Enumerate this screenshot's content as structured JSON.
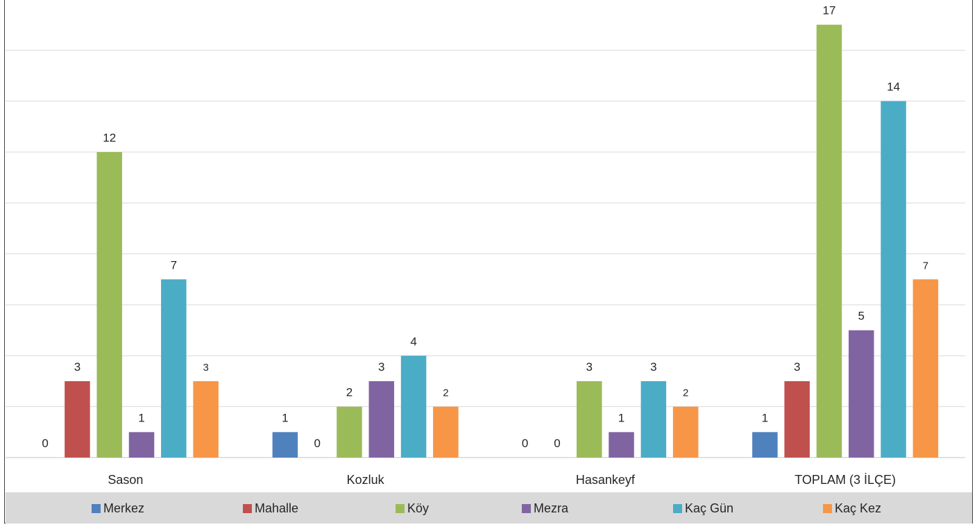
{
  "chart_data": {
    "type": "bar",
    "categories": [
      "Sason",
      "Kozluk",
      "Hasankeyf",
      "TOPLAM (3 İLÇE)"
    ],
    "series": [
      {
        "name": "Merkez",
        "color": "#4f81bd",
        "values": [
          0,
          1,
          0,
          1
        ]
      },
      {
        "name": "Mahalle",
        "color": "#c0504d",
        "values": [
          3,
          0,
          0,
          3
        ]
      },
      {
        "name": "Köy",
        "color": "#9bbb59",
        "values": [
          12,
          2,
          3,
          17
        ]
      },
      {
        "name": "Mezra",
        "color": "#8064a2",
        "values": [
          1,
          3,
          1,
          5
        ]
      },
      {
        "name": "Kaç Gün",
        "color": "#4bacc6",
        "values": [
          7,
          4,
          3,
          14
        ]
      },
      {
        "name": "Kaç Kez",
        "color": "#f79646",
        "values": [
          3,
          2,
          2,
          7
        ]
      }
    ],
    "ylim": [
      0,
      18
    ],
    "grid": true,
    "legend_position": "bottom",
    "xlabel": "",
    "ylabel": ""
  }
}
